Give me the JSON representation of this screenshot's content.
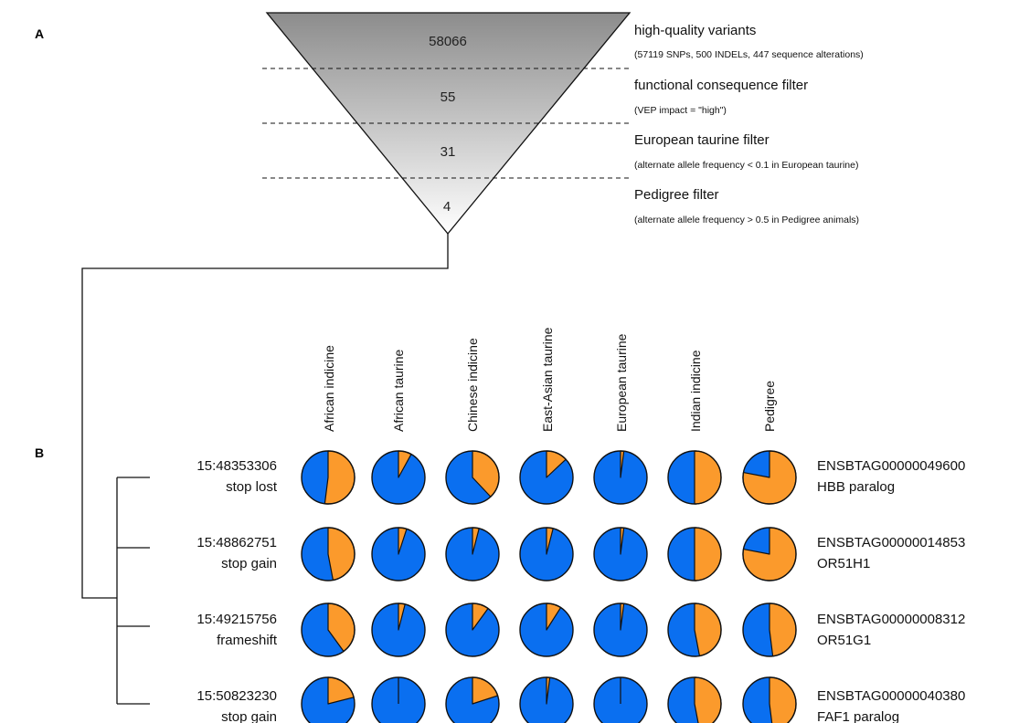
{
  "panel_labels": {
    "a": "A",
    "b": "B"
  },
  "funnel": {
    "levels": [
      {
        "count": "58066",
        "title": "high-quality variants",
        "subtitle": "(57119 SNPs, 500 INDELs, 447 sequence alterations)"
      },
      {
        "count": "55",
        "title": "functional consequence filter",
        "subtitle": "(VEP impact = \"high\")"
      },
      {
        "count": "31",
        "title": "European taurine filter",
        "subtitle": "(alternate allele frequency < 0.1 in European taurine)"
      },
      {
        "count": "4",
        "title": "Pedigree filter",
        "subtitle": "(alternate allele frequency > 0.5 in Pedigree animals)"
      }
    ]
  },
  "colors": {
    "reference": "#0a6ff0",
    "alternate": "#fb9a2c",
    "outline": "#111111"
  },
  "populations": [
    "African indicine",
    "African taurine",
    "Chinese indicine",
    "East-Asian taurine",
    "European taurine",
    "Indian indicine",
    "Pedigree"
  ],
  "variants": [
    {
      "position": "15:48353306",
      "consequence": "stop lost",
      "gene_id": "ENSBTAG00000049600",
      "gene_name": "HBB paralog",
      "alt_freq": [
        0.52,
        0.08,
        0.38,
        0.13,
        0.02,
        0.5,
        0.78
      ]
    },
    {
      "position": "15:48862751",
      "consequence": "stop gain",
      "gene_id": "ENSBTAG00000014853",
      "gene_name": "OR51H1",
      "alt_freq": [
        0.47,
        0.05,
        0.04,
        0.04,
        0.02,
        0.5,
        0.78
      ]
    },
    {
      "position": "15:49215756",
      "consequence": "frameshift",
      "gene_id": "ENSBTAG00000008312",
      "gene_name": "OR51G1",
      "alt_freq": [
        0.4,
        0.04,
        0.1,
        0.09,
        0.02,
        0.47,
        0.48
      ]
    },
    {
      "position": "15:50823230",
      "consequence": "stop gain",
      "gene_id": "ENSBTAG00000040380",
      "gene_name": "FAF1 paralog",
      "alt_freq": [
        0.21,
        0.0,
        0.2,
        0.02,
        0.0,
        0.47,
        0.48
      ]
    }
  ]
}
